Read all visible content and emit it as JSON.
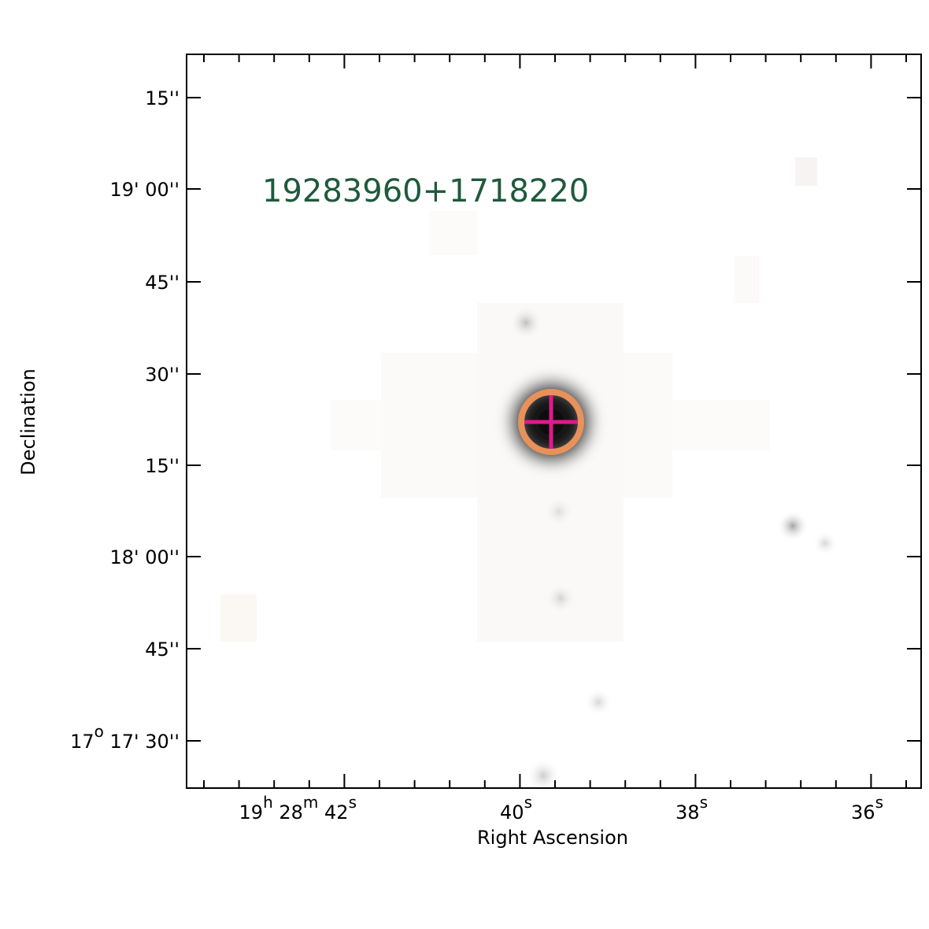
{
  "label": "19283960+1718220",
  "x_axis": {
    "title": "Right Ascension",
    "tick_labels": [
      [
        [
          "19",
          "h"
        ],
        [
          " 28",
          "m"
        ],
        [
          " 42",
          "s"
        ]
      ],
      [
        [
          "40",
          "s"
        ]
      ],
      [
        [
          "38",
          "s"
        ]
      ],
      [
        [
          "36",
          "s"
        ]
      ]
    ]
  },
  "y_axis": {
    "title": "Declination",
    "tick_labels": [
      [
        [
          "15''"
        ]
      ],
      [
        [
          "19' 00''"
        ]
      ],
      [
        [
          "45''"
        ]
      ],
      [
        [
          "30''"
        ]
      ],
      [
        [
          "15''"
        ]
      ],
      [
        [
          "18' 00''"
        ]
      ],
      [
        [
          "45''"
        ]
      ],
      [
        [
          "17",
          "o"
        ],
        [
          " 17' 30''"
        ]
      ]
    ]
  }
}
